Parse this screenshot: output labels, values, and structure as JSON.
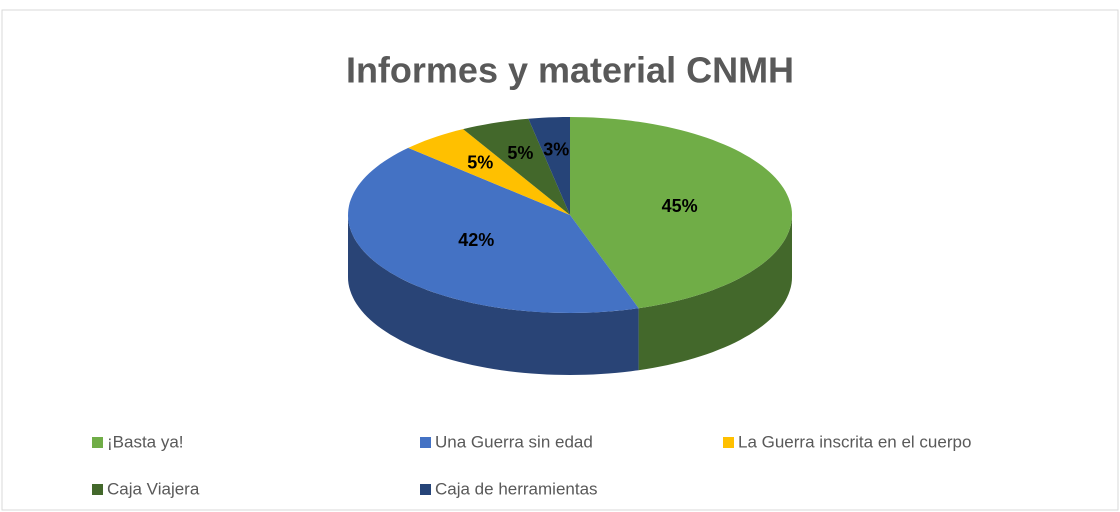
{
  "chart_data": {
    "type": "pie",
    "title": "Informes y material CNMH",
    "categories": [
      "¡Basta ya!",
      "Una  Guerra sin edad",
      "La Guerra inscrita en el cuerpo",
      "Caja Viajera",
      "Caja de herramientas"
    ],
    "values": [
      45,
      42,
      5,
      5,
      3
    ],
    "value_labels": [
      "45%",
      "42%",
      "5%",
      "5%",
      "3%"
    ],
    "colors": [
      "#70ad47",
      "#4472c4",
      "#ffc000",
      "#43682b",
      "#264478"
    ],
    "legend": "bottom"
  }
}
